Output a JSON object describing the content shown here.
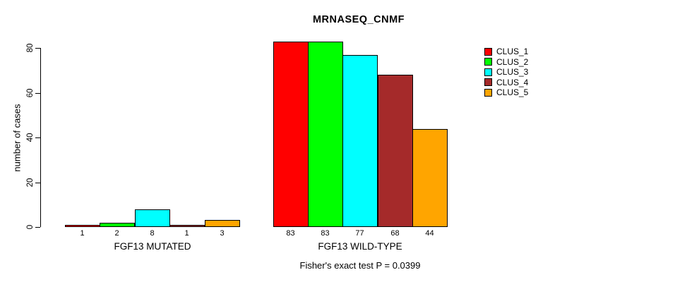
{
  "chart_data": {
    "type": "bar",
    "title": "MRNASEQ_CNMF",
    "ylabel": "number of cases",
    "xlabel": "",
    "categories": [
      "FGF13 MUTATED",
      "FGF13 WILD-TYPE"
    ],
    "series": [
      {
        "name": "CLUS_1",
        "color": "#FF0000",
        "values": [
          1,
          83
        ]
      },
      {
        "name": "CLUS_2",
        "color": "#00FF00",
        "values": [
          2,
          83
        ]
      },
      {
        "name": "CLUS_3",
        "color": "#00FFFF",
        "values": [
          8,
          77
        ]
      },
      {
        "name": "CLUS_4",
        "color": "#A52A2A",
        "values": [
          1,
          68
        ]
      },
      {
        "name": "CLUS_5",
        "color": "#FFA500",
        "values": [
          3,
          44
        ]
      }
    ],
    "yticks": [
      0,
      20,
      40,
      60,
      80
    ],
    "ylim": [
      0,
      83
    ],
    "grid": false,
    "bar_value_labels": true,
    "bar_border_color": "#000000",
    "legend_position": "right",
    "legend_entries": [
      "CLUS_1",
      "CLUS_2",
      "CLUS_3",
      "CLUS_4",
      "CLUS_5"
    ],
    "annotation": "Fisher's exact test P = 0.0399"
  }
}
